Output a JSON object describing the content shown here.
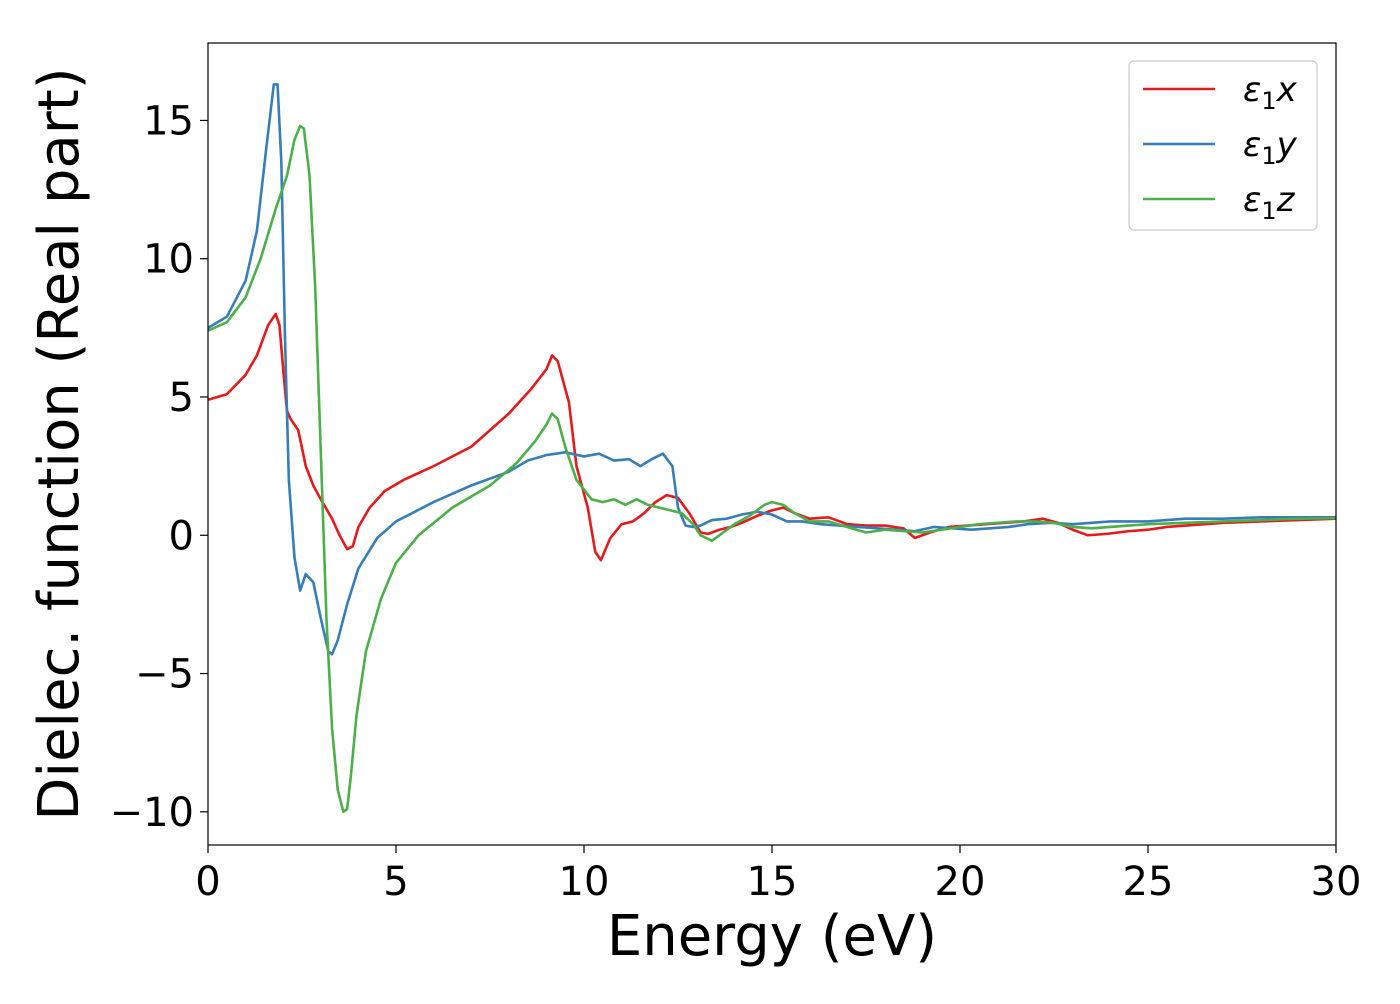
{
  "chart_data": {
    "type": "line",
    "title": "",
    "xlabel": "Energy (eV)",
    "ylabel": "Dielec. function (Real part)",
    "xlim": [
      0,
      30
    ],
    "ylim": [
      -11.2,
      17.8
    ],
    "xticks": [
      0,
      5,
      10,
      15,
      20,
      25,
      30
    ],
    "xtick_labels": [
      "0",
      "5",
      "10",
      "15",
      "20",
      "25",
      "30"
    ],
    "yticks": [
      -10,
      -5,
      0,
      5,
      10,
      15
    ],
    "ytick_labels": [
      "−10",
      "−5",
      "0",
      "5",
      "10",
      "15"
    ],
    "grid": false,
    "legend_position": "top-right",
    "series": [
      {
        "name": "ε₁x",
        "legend_base": "ε",
        "legend_sub": "1",
        "legend_var": "x",
        "color": "#e41a1c",
        "x": [
          0,
          0.5,
          1.0,
          1.3,
          1.6,
          1.8,
          1.9,
          2.0,
          2.1,
          2.2,
          2.4,
          2.6,
          2.8,
          3.0,
          3.3,
          3.5,
          3.7,
          3.85,
          4.0,
          4.3,
          4.7,
          5.2,
          6.0,
          7.0,
          8.0,
          8.6,
          9.0,
          9.15,
          9.3,
          9.6,
          9.8,
          10.1,
          10.3,
          10.45,
          10.7,
          11.0,
          11.3,
          11.6,
          11.9,
          12.2,
          12.5,
          12.8,
          13.1,
          13.3,
          13.6,
          13.9,
          14.2,
          14.6,
          15.0,
          15.3,
          15.6,
          16.0,
          16.5,
          17.0,
          17.5,
          18.0,
          18.5,
          18.8,
          19.2,
          19.7,
          20.2,
          20.7,
          21.2,
          21.7,
          22.2,
          22.6,
          23.0,
          23.4,
          23.9,
          24.5,
          25.0,
          25.5,
          26.0,
          27.0,
          28.0,
          29.0,
          30.0
        ],
        "y": [
          4.9,
          5.1,
          5.8,
          6.5,
          7.6,
          8.0,
          7.6,
          6.0,
          4.5,
          4.2,
          3.8,
          2.5,
          1.8,
          1.3,
          0.6,
          0.0,
          -0.5,
          -0.4,
          0.3,
          1.0,
          1.6,
          2.0,
          2.5,
          3.2,
          4.4,
          5.3,
          6.0,
          6.5,
          6.3,
          4.8,
          2.5,
          1.0,
          -0.6,
          -0.9,
          -0.1,
          0.4,
          0.5,
          0.8,
          1.2,
          1.45,
          1.35,
          0.8,
          0.1,
          0.05,
          0.2,
          0.3,
          0.45,
          0.7,
          0.9,
          1.0,
          0.8,
          0.6,
          0.65,
          0.4,
          0.35,
          0.35,
          0.25,
          -0.1,
          0.1,
          0.3,
          0.35,
          0.4,
          0.45,
          0.5,
          0.6,
          0.45,
          0.2,
          0.0,
          0.05,
          0.15,
          0.2,
          0.3,
          0.35,
          0.45,
          0.5,
          0.55,
          0.6
        ]
      },
      {
        "name": "ε₁y",
        "legend_base": "ε",
        "legend_sub": "1",
        "legend_var": "y",
        "color": "#377eb8",
        "x": [
          0,
          0.5,
          1.0,
          1.3,
          1.55,
          1.75,
          1.85,
          1.95,
          2.05,
          2.15,
          2.3,
          2.45,
          2.6,
          2.8,
          3.0,
          3.2,
          3.3,
          3.45,
          3.7,
          4.0,
          4.5,
          5.0,
          6.0,
          7.0,
          8.0,
          8.5,
          9.0,
          9.5,
          10.0,
          10.4,
          10.8,
          11.2,
          11.5,
          11.8,
          12.1,
          12.35,
          12.5,
          12.7,
          12.9,
          13.1,
          13.4,
          13.8,
          14.2,
          14.6,
          15.0,
          15.4,
          15.8,
          16.3,
          16.8,
          17.3,
          17.8,
          18.3,
          18.8,
          19.3,
          19.8,
          20.3,
          20.8,
          21.3,
          21.8,
          22.4,
          23.0,
          23.5,
          24.0,
          24.5,
          25.0,
          25.5,
          26.0,
          27.0,
          28.0,
          29.0,
          30.0
        ],
        "y": [
          7.5,
          7.9,
          9.2,
          11.0,
          14.0,
          16.3,
          16.3,
          13.5,
          7.0,
          2.0,
          -0.8,
          -2.0,
          -1.4,
          -1.7,
          -3.0,
          -4.2,
          -4.3,
          -3.8,
          -2.5,
          -1.2,
          -0.1,
          0.5,
          1.2,
          1.8,
          2.3,
          2.7,
          2.9,
          3.0,
          2.85,
          2.95,
          2.7,
          2.75,
          2.5,
          2.75,
          2.95,
          2.5,
          1.0,
          0.35,
          0.3,
          0.35,
          0.55,
          0.6,
          0.75,
          0.85,
          0.75,
          0.5,
          0.5,
          0.4,
          0.35,
          0.3,
          0.25,
          0.2,
          0.15,
          0.3,
          0.25,
          0.2,
          0.25,
          0.3,
          0.4,
          0.45,
          0.4,
          0.45,
          0.5,
          0.5,
          0.5,
          0.55,
          0.6,
          0.6,
          0.65,
          0.65,
          0.65
        ]
      },
      {
        "name": "ε₁z",
        "legend_base": "ε",
        "legend_sub": "1",
        "legend_var": "z",
        "color": "#4daf4a",
        "x": [
          0,
          0.5,
          1.0,
          1.4,
          1.8,
          2.1,
          2.3,
          2.45,
          2.55,
          2.7,
          2.85,
          3.0,
          3.15,
          3.3,
          3.45,
          3.6,
          3.7,
          3.8,
          3.95,
          4.2,
          4.6,
          5.0,
          5.6,
          6.5,
          7.5,
          8.2,
          8.7,
          9.0,
          9.15,
          9.3,
          9.5,
          9.8,
          10.2,
          10.5,
          10.8,
          11.1,
          11.4,
          11.7,
          12.0,
          12.3,
          12.6,
          12.9,
          13.1,
          13.4,
          13.7,
          14.0,
          14.4,
          14.8,
          15.0,
          15.3,
          15.6,
          16.0,
          16.5,
          17.0,
          17.5,
          18.0,
          18.5,
          19.0,
          19.5,
          20.0,
          20.5,
          21.0,
          21.5,
          22.0,
          22.5,
          23.0,
          23.5,
          24.0,
          24.5,
          25.0,
          26.0,
          27.0,
          28.0,
          29.0,
          30.0
        ],
        "y": [
          7.4,
          7.7,
          8.6,
          10.0,
          11.8,
          13.0,
          14.3,
          14.8,
          14.7,
          13.0,
          9.0,
          3.0,
          -3.0,
          -7.0,
          -9.2,
          -10.0,
          -9.9,
          -8.7,
          -6.5,
          -4.2,
          -2.3,
          -1.0,
          0.0,
          1.0,
          1.8,
          2.6,
          3.4,
          4.0,
          4.4,
          4.2,
          3.2,
          2.0,
          1.3,
          1.2,
          1.3,
          1.1,
          1.3,
          1.1,
          1.0,
          0.9,
          0.8,
          0.4,
          0.0,
          -0.2,
          0.1,
          0.4,
          0.7,
          1.1,
          1.2,
          1.1,
          0.8,
          0.5,
          0.5,
          0.3,
          0.1,
          0.2,
          0.15,
          0.1,
          0.2,
          0.3,
          0.4,
          0.45,
          0.5,
          0.5,
          0.45,
          0.3,
          0.25,
          0.3,
          0.35,
          0.4,
          0.45,
          0.5,
          0.55,
          0.6,
          0.62
        ]
      }
    ]
  }
}
